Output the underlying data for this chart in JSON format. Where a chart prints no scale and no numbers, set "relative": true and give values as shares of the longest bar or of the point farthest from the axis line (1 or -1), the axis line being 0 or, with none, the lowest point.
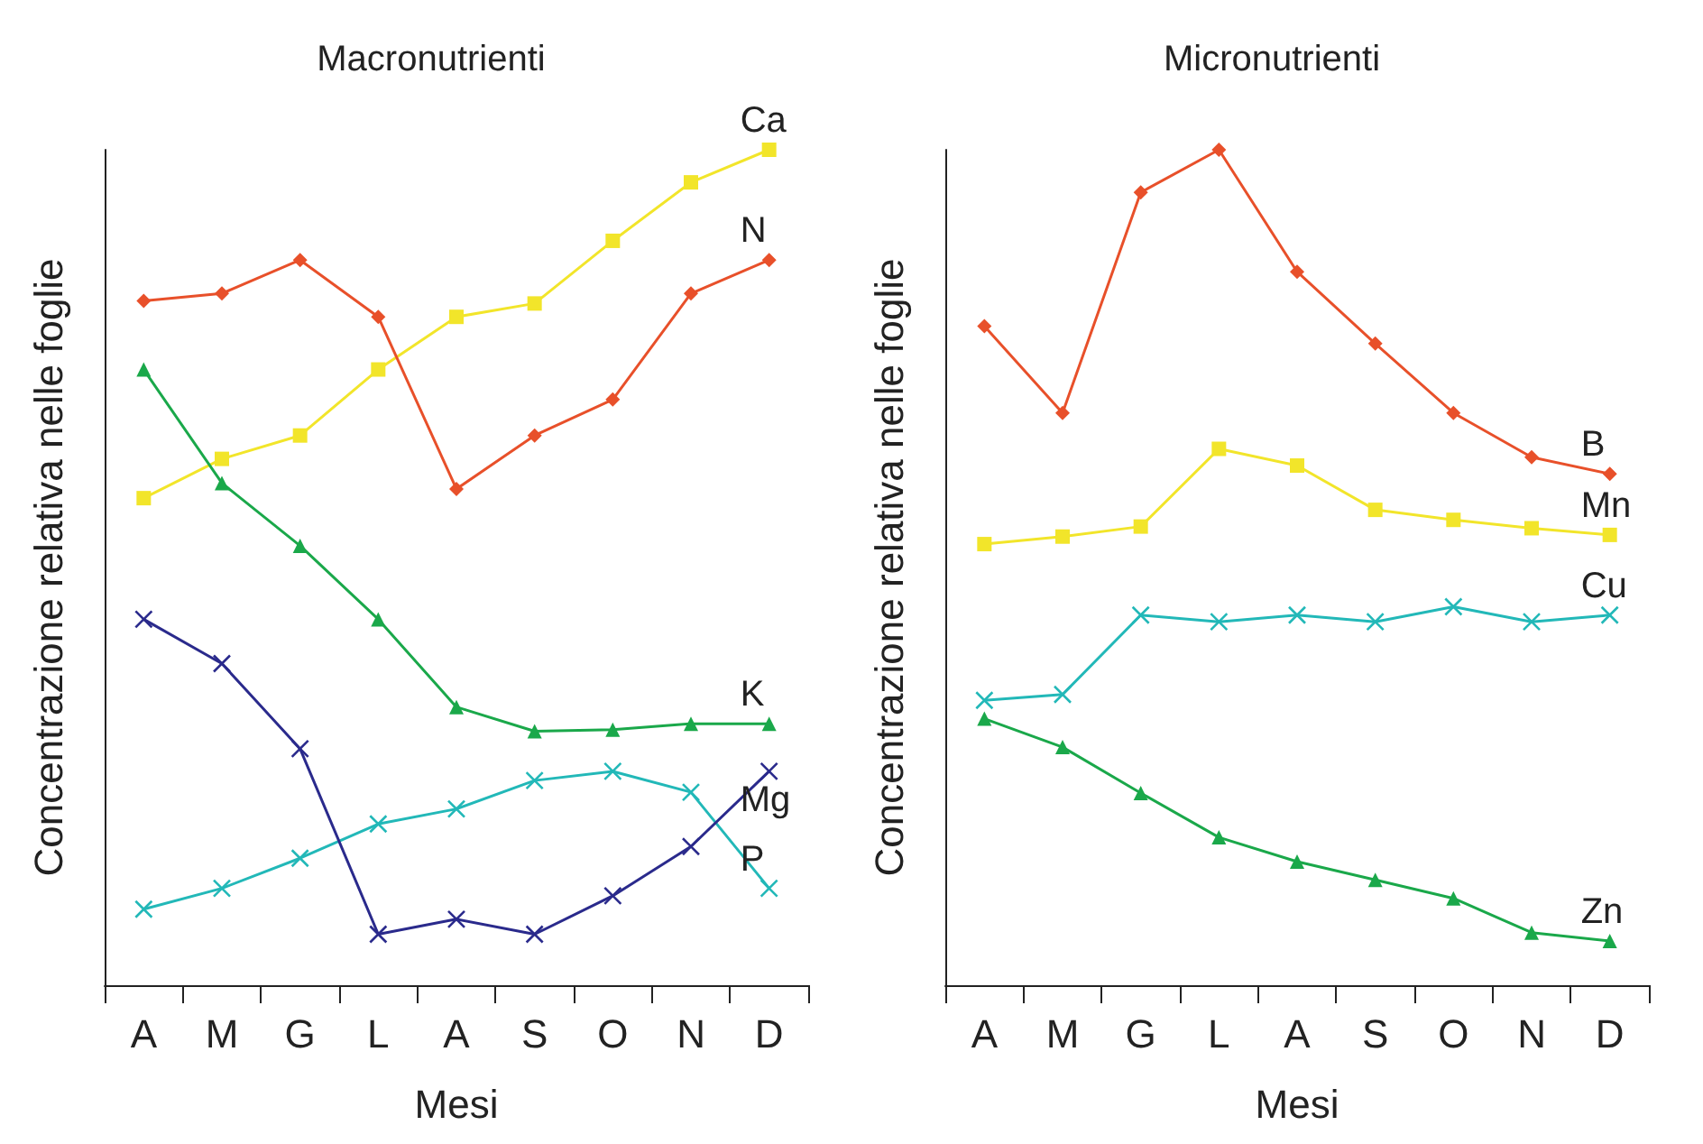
{
  "chart_data": [
    {
      "type": "line",
      "title": "Macronutrienti",
      "xlabel": "Mesi",
      "ylabel": "Concentrazione relativa nelle foglie",
      "relative": true,
      "legend": false,
      "grid": false,
      "categories": [
        "A",
        "M",
        "G",
        "L",
        "A",
        "S",
        "O",
        "N",
        "D"
      ],
      "series": [
        {
          "name": "Ca",
          "color": "#f2e52a",
          "marker": "square",
          "values": [
            0.583,
            0.63,
            0.658,
            0.737,
            0.8,
            0.816,
            0.891,
            0.961,
            1
          ]
        },
        {
          "name": "N",
          "color": "#e8502a",
          "marker": "diamond",
          "values": [
            0.819,
            0.828,
            0.868,
            0.8,
            0.594,
            0.658,
            0.701,
            0.828,
            0.868
          ]
        },
        {
          "name": "K",
          "color": "#1aa84a",
          "marker": "triangle",
          "values": [
            0.737,
            0.601,
            0.526,
            0.438,
            0.333,
            0.304,
            0.306,
            0.313,
            0.313
          ]
        },
        {
          "name": "P",
          "color": "#22b8b8",
          "marker": "cross",
          "values": [
            0.091,
            0.116,
            0.152,
            0.193,
            0.211,
            0.245,
            0.256,
            0.231,
            0.116
          ]
        },
        {
          "name": "Mg",
          "color": "#2a2a8c",
          "marker": "cross",
          "values": [
            0.438,
            0.385,
            0.283,
            0.061,
            0.079,
            0.061,
            0.107,
            0.166,
            0.256
          ]
        }
      ]
    },
    {
      "type": "line",
      "title": "Micronutrienti",
      "xlabel": "Mesi",
      "ylabel": "Concentrazione relativa nelle foglie",
      "relative": true,
      "legend": false,
      "grid": false,
      "categories": [
        "A",
        "M",
        "G",
        "L",
        "A",
        "S",
        "O",
        "N",
        "D"
      ],
      "series": [
        {
          "name": "B",
          "color": "#e8502a",
          "marker": "diamond",
          "values": [
            0.789,
            0.685,
            0.949,
            1,
            0.854,
            0.768,
            0.685,
            0.632,
            0.612
          ]
        },
        {
          "name": "Mn",
          "color": "#f2e52a",
          "marker": "square",
          "values": [
            0.528,
            0.537,
            0.549,
            0.642,
            0.622,
            0.569,
            0.557,
            0.547,
            0.539
          ]
        },
        {
          "name": "Cu",
          "color": "#22b8b8",
          "marker": "cross",
          "values": [
            0.341,
            0.348,
            0.443,
            0.435,
            0.443,
            0.435,
            0.453,
            0.435,
            0.443
          ]
        },
        {
          "name": "Zn",
          "color": "#1aa84a",
          "marker": "triangle",
          "values": [
            0.319,
            0.285,
            0.23,
            0.177,
            0.148,
            0.126,
            0.104,
            0.063,
            0.053
          ]
        }
      ]
    }
  ]
}
